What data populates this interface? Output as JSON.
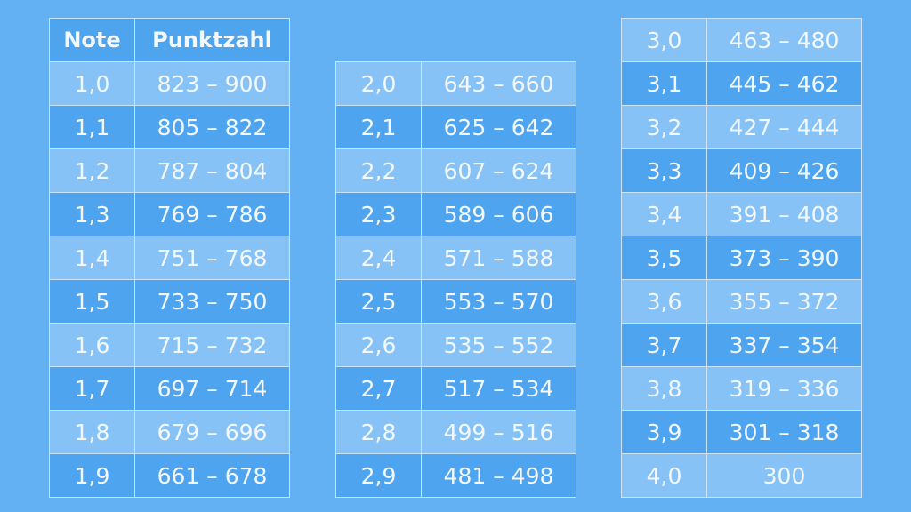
{
  "header": {
    "note": "Note",
    "punktzahl": "Punktzahl"
  },
  "tables": [
    [
      [
        "1,0",
        "823 – 900"
      ],
      [
        "1,1",
        "805 – 822"
      ],
      [
        "1,2",
        "787 – 804"
      ],
      [
        "1,3",
        "769 – 786"
      ],
      [
        "1,4",
        "751 – 768"
      ],
      [
        "1,5",
        "733 – 750"
      ],
      [
        "1,6",
        "715 – 732"
      ],
      [
        "1,7",
        "697 – 714"
      ],
      [
        "1,8",
        "679 – 696"
      ],
      [
        "1,9",
        "661 – 678"
      ]
    ],
    [
      [
        "2,0",
        "643 – 660"
      ],
      [
        "2,1",
        "625 – 642"
      ],
      [
        "2,2",
        "607 – 624"
      ],
      [
        "2,3",
        "589 – 606"
      ],
      [
        "2,4",
        "571 – 588"
      ],
      [
        "2,5",
        "553 – 570"
      ],
      [
        "2,6",
        "535 – 552"
      ],
      [
        "2,7",
        "517 – 534"
      ],
      [
        "2,8",
        "499 – 516"
      ],
      [
        "2,9",
        "481 – 498"
      ]
    ],
    [
      [
        "3,0",
        "463 – 480"
      ],
      [
        "3,1",
        "445 – 462"
      ],
      [
        "3,2",
        "427 – 444"
      ],
      [
        "3,3",
        "409 – 426"
      ],
      [
        "3,4",
        "391 – 408"
      ],
      [
        "3,5",
        "373 – 390"
      ],
      [
        "3,6",
        "355 – 372"
      ],
      [
        "3,7",
        "337 – 354"
      ],
      [
        "3,8",
        "319 – 336"
      ],
      [
        "3,9",
        "301 – 318"
      ],
      [
        "4,0",
        "300"
      ]
    ]
  ],
  "colors": {
    "background": "#63b1f3",
    "row_light": "#86c2f6",
    "row_dark": "#4ea4ee",
    "header": "#4fa4ee",
    "text": "#f2f8fe"
  }
}
